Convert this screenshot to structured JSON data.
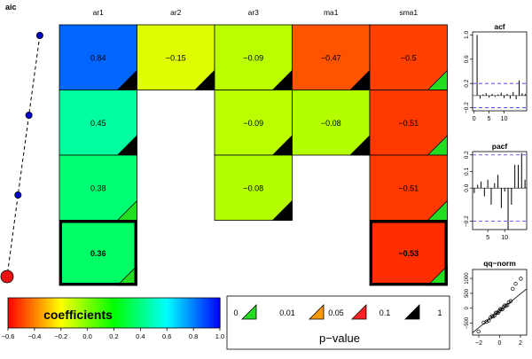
{
  "chart_data": [
    {
      "type": "heatmap",
      "title": "",
      "columns": [
        "ar1",
        "ar2",
        "ar3",
        "ma1",
        "sma1"
      ],
      "rows": [
        {
          "coef": [
            0.84,
            -0.15,
            -0.09,
            -0.47,
            -0.5
          ],
          "sig": [
            "0.1",
            "0.1",
            "0.1",
            "0.1",
            "0"
          ]
        },
        {
          "coef": [
            0.45,
            null,
            -0.09,
            -0.08,
            -0.51
          ],
          "sig": [
            "0.1",
            null,
            "0.1",
            "0.1",
            "0"
          ]
        },
        {
          "coef": [
            0.38,
            null,
            -0.08,
            null,
            -0.51
          ],
          "sig": [
            "0",
            null,
            "0.1",
            null,
            "0"
          ]
        },
        {
          "coef": [
            0.36,
            null,
            null,
            null,
            -0.53
          ],
          "sig": [
            "0",
            null,
            null,
            null,
            "0"
          ]
        }
      ],
      "selected_row": 3,
      "aic": {
        "label": "aic",
        "values": [
          4,
          3,
          2,
          1
        ]
      },
      "colorbar": {
        "label": "coefficients",
        "ticks": [
          "-0.6",
          "-0.4",
          "-0.2",
          "0.0",
          "0.2",
          "0.4",
          "0.6",
          "0.8",
          "1.0"
        ],
        "range": [
          -0.6,
          1.0
        ]
      },
      "pvalue_legend": {
        "title": "p−value",
        "breaks": [
          "0",
          "0.01",
          "0.05",
          "0.1",
          "1"
        ],
        "colors": [
          "#22dd22",
          "#ff9900",
          "#ff2222",
          "#000000"
        ]
      }
    },
    {
      "type": "bar",
      "title": "acf",
      "x": [
        1,
        2,
        3,
        4,
        5,
        6,
        7,
        8,
        9,
        10,
        11,
        12,
        13,
        14,
        15,
        16,
        17
      ],
      "values": [
        1.0,
        -0.05,
        0.02,
        0.04,
        -0.03,
        0.03,
        -0.02,
        0.02,
        0.05,
        -0.04,
        0.03,
        -0.05,
        0.06,
        -0.06,
        0.25,
        0.04,
        0.03
      ],
      "xticks": [
        "0",
        "5",
        "10"
      ],
      "yticks": [
        "-0.2",
        "0.2",
        "0.6",
        "1.0"
      ],
      "ylim": [
        -0.25,
        1.05
      ],
      "band": 0.2
    },
    {
      "type": "bar",
      "title": "pacf",
      "x": [
        1,
        2,
        3,
        4,
        5,
        6,
        7,
        8,
        9,
        10,
        11,
        12,
        13,
        14,
        15,
        16
      ],
      "values": [
        -0.03,
        0.02,
        0.04,
        -0.05,
        0.05,
        -0.1,
        0.03,
        0.08,
        -0.12,
        -0.02,
        -0.25,
        -0.1,
        0.14,
        0.14,
        0.21,
        0.05
      ],
      "xticks": [
        "5",
        "10"
      ],
      "yticks": [
        "-0.2",
        "0.0",
        "0.1",
        "0.2"
      ],
      "ylim": [
        -0.25,
        0.22
      ],
      "band": 0.2
    },
    {
      "type": "scatter",
      "title": "qq−norm",
      "xticks": [
        "-2",
        "0",
        "2"
      ],
      "yticks": [
        "-500",
        "0",
        "500",
        "1000"
      ],
      "xlim": [
        -2.6,
        2.6
      ],
      "ylim": [
        -900,
        1300
      ],
      "line": [
        [
          -2.6,
          -820
        ],
        [
          2.6,
          650
        ]
      ]
    }
  ]
}
